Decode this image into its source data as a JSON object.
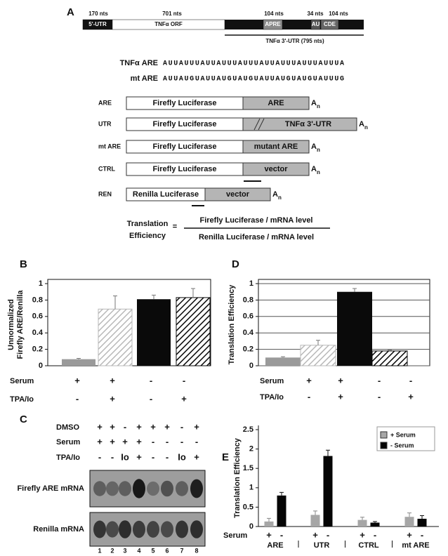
{
  "panel_a": {
    "label": "A",
    "segments": [
      {
        "length": "170 nts",
        "name": "5'-UTR"
      },
      {
        "length": "701 nts",
        "name": "TNFα ORF"
      },
      {
        "length": "104 nts",
        "name": "APRE"
      },
      {
        "length": "34 nts",
        "name": "AU"
      },
      {
        "length": "104 nts",
        "name": "CDE"
      }
    ],
    "utr_label": "TNFα 3'-UTR (795 nts)",
    "sequences": [
      {
        "name": "TNFα ARE",
        "seq": "AUUAUUUAUUAUUUAUUUAUUAUUUAUUUAUUUA"
      },
      {
        "name": "mt ARE",
        "seq": "AUUAUGUAUUAUGUAUGUAUUAUGUAUGUAUUUG"
      }
    ],
    "constructs": [
      {
        "name": "ARE",
        "reporter": "Firefly Luciferase",
        "insert": "ARE"
      },
      {
        "name": "UTR",
        "reporter": "Firefly Luciferase",
        "insert": "TNFα 3'-UTR"
      },
      {
        "name": "mt ARE",
        "reporter": "Firefly Luciferase",
        "insert": "mutant ARE"
      },
      {
        "name": "CTRL",
        "reporter": "Firefly Luciferase",
        "insert": "vector"
      },
      {
        "name": "REN",
        "reporter": "Renilla Luciferase",
        "insert": "vector"
      }
    ],
    "poly_a": {
      "base": "A",
      "sub": "n"
    },
    "equation": {
      "lhs": [
        "Translation",
        "Efficiency"
      ],
      "sign": "=",
      "numerator": "Firefly Luciferase / mRNA level",
      "denominator": "Renilla Luciferase / mRNA level"
    }
  },
  "panel_c": {
    "label": "C",
    "rows": [
      {
        "name": "DMSO",
        "values": [
          "+",
          "+",
          "-",
          "+",
          "+",
          "+",
          "-",
          "+"
        ]
      },
      {
        "name": "Serum",
        "values": [
          "+",
          "+",
          "+",
          "+",
          "-",
          "-",
          "-",
          "-"
        ]
      },
      {
        "name": "TPA/Io",
        "values": [
          "-",
          "-",
          "Io",
          "+",
          "-",
          "-",
          "Io",
          "+"
        ]
      }
    ],
    "blots": [
      "Firefly ARE mRNA",
      "Renilla mRNA"
    ],
    "lanes": [
      "1",
      "2",
      "3",
      "4",
      "5",
      "6",
      "7",
      "8"
    ]
  },
  "chart_data": [
    {
      "type": "bar",
      "panel": "B",
      "ylabel": [
        "Unnormalized",
        "Firefly ARE/Renilla"
      ],
      "values": [
        0.08,
        0.69,
        0.81,
        0.83
      ],
      "errors": [
        0.01,
        0.16,
        0.05,
        0.11
      ],
      "colors": [
        "#9a9a9a",
        "#b8b8b8",
        "#0a0a0a",
        "#0a0a0a"
      ],
      "hatch": [
        false,
        true,
        false,
        true
      ],
      "ylim": [
        0,
        1
      ],
      "yticks": [
        0,
        0.2,
        0.4,
        0.6,
        0.8,
        1
      ],
      "grid": false,
      "conditions": [
        {
          "name": "Serum",
          "values": [
            "+",
            "+",
            "-",
            "-"
          ]
        },
        {
          "name": "TPA/Io",
          "values": [
            "-",
            "+",
            "-",
            "+"
          ]
        }
      ]
    },
    {
      "type": "bar",
      "panel": "D",
      "ylabel": "Translation Efficiency",
      "values": [
        0.1,
        0.25,
        0.9,
        0.18
      ],
      "errors": [
        0.01,
        0.06,
        0.04,
        0.01
      ],
      "colors": [
        "#9a9a9a",
        "#b8b8b8",
        "#0a0a0a",
        "#0a0a0a"
      ],
      "hatch": [
        false,
        true,
        false,
        true
      ],
      "ylim": [
        0,
        1
      ],
      "yticks": [
        0,
        0.2,
        0.4,
        0.6,
        0.8,
        1
      ],
      "grid": true,
      "conditions": [
        {
          "name": "Serum",
          "values": [
            "+",
            "+",
            "-",
            "-"
          ]
        },
        {
          "name": "TPA/Io",
          "values": [
            "-",
            "+",
            "-",
            "+"
          ]
        }
      ]
    },
    {
      "type": "grouped-bar",
      "panel": "E",
      "ylabel": "Translation Efficiency",
      "categories": [
        "ARE",
        "UTR",
        "CTRL",
        "mt ARE"
      ],
      "series": [
        {
          "name": "+ Serum",
          "color": "#a6a6a6",
          "values": [
            0.13,
            0.3,
            0.17,
            0.25
          ],
          "errors": [
            0.08,
            0.1,
            0.07,
            0.1
          ]
        },
        {
          "name": "- Serum",
          "color": "#050505",
          "values": [
            0.8,
            1.82,
            0.1,
            0.2
          ],
          "errors": [
            0.08,
            0.15,
            0.03,
            0.08
          ]
        }
      ],
      "ylim": [
        0,
        2.5
      ],
      "yticks": [
        0,
        0.5,
        1,
        1.5,
        2,
        2.5
      ],
      "grid": false,
      "condition": {
        "name": "Serum",
        "values": [
          "+",
          "-"
        ]
      }
    }
  ]
}
